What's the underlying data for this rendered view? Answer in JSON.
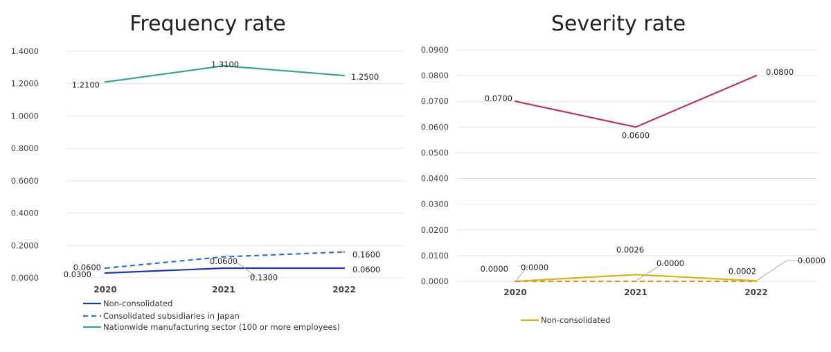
{
  "chart_data": [
    {
      "type": "line",
      "title": "Frequency rate",
      "categories": [
        "2020",
        "2021",
        "2022"
      ],
      "ylim": [
        0,
        1.4
      ],
      "yticks": [
        "0.0000",
        "0.2000",
        "0.4000",
        "0.6000",
        "0.8000",
        "1.0000",
        "1.2000",
        "1.4000"
      ],
      "grid": true,
      "legend_position": "bottom-left",
      "series": [
        {
          "name": "Non-consolidated",
          "values": [
            0.03,
            0.06,
            0.06
          ],
          "labels": [
            "0.0300",
            "0.0600",
            "0.0600"
          ],
          "color": "#1f3a9e",
          "dash": false
        },
        {
          "name": "Consolidated subsidiaries in Japan",
          "values": [
            0.06,
            0.13,
            0.16
          ],
          "labels": [
            "0.0600",
            "0.1300",
            "0.1600"
          ],
          "color": "#2f6fc4",
          "dash": true
        },
        {
          "name": "Nationwide manufacturing sector (100 or more employees)",
          "values": [
            1.21,
            1.31,
            1.25
          ],
          "labels": [
            "1.2100",
            "1.3100",
            "1.2500"
          ],
          "color": "#3aa08f",
          "dash": false
        }
      ]
    },
    {
      "type": "line",
      "title": "Severity rate",
      "categories": [
        "2020",
        "2021",
        "2022"
      ],
      "ylim": [
        0,
        0.09
      ],
      "yticks": [
        "0.0000",
        "0.0100",
        "0.0200",
        "0.0300",
        "0.0400",
        "0.0500",
        "0.0600",
        "0.0700",
        "0.0800",
        "0.0900"
      ],
      "grid": true,
      "legend_position": "bottom-left",
      "series": [
        {
          "name": "Non-consolidated",
          "values": [
            0.0,
            0.0026,
            0.0002
          ],
          "labels": [
            "0.0000",
            "0.0026",
            "0.0002"
          ],
          "color": "#d4b41c",
          "dash": false,
          "legend": true
        },
        {
          "values": [
            0.0,
            0.0,
            0.0
          ],
          "labels": [
            "0.0000",
            "0.0000",
            "0.0000"
          ],
          "color": "#e3902e",
          "dash": true,
          "legend": false
        },
        {
          "values": [
            0.07,
            0.06,
            0.08
          ],
          "labels": [
            "0.0700",
            "0.0600",
            "0.0800"
          ],
          "color": "#b8345d",
          "dash": false,
          "legend": false
        }
      ]
    }
  ]
}
